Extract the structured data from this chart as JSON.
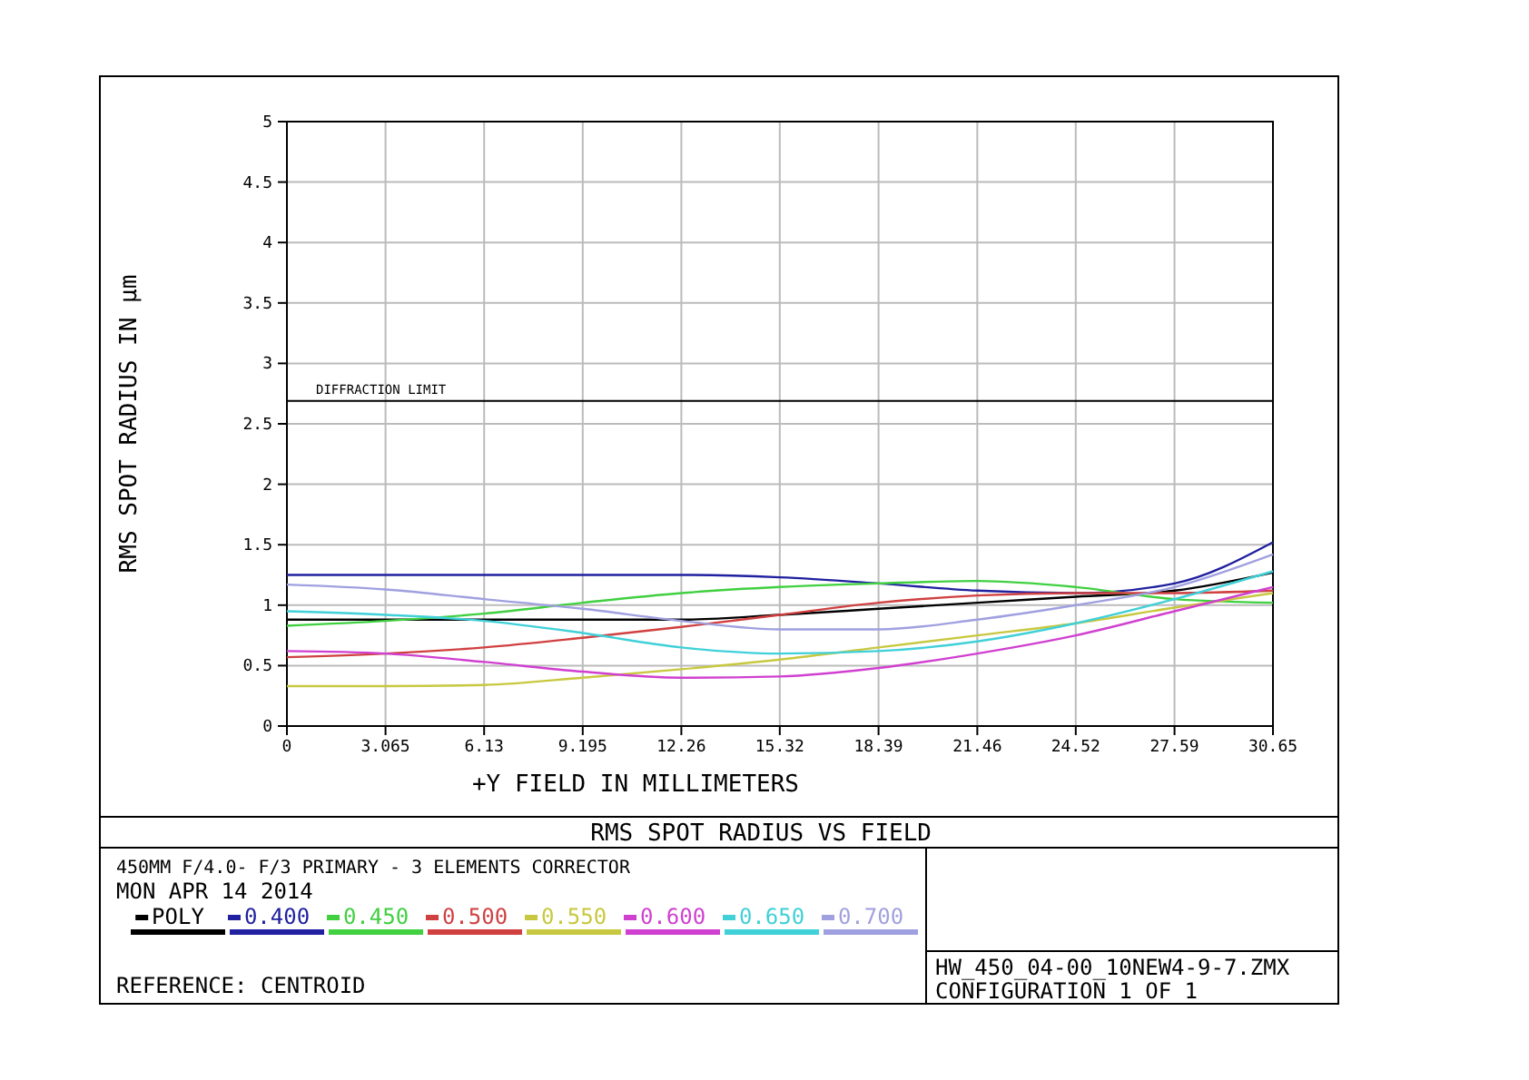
{
  "chart_data": {
    "type": "line",
    "title": "RMS SPOT RADIUS VS FIELD",
    "subtitle": "450MM F/4.0- F/3 PRIMARY -  3 ELEMENTS CORRECTOR",
    "xlabel": "+Y FIELD IN MILLIMETERS",
    "ylabel": "RMS SPOT RADIUS IN µm",
    "x": [
      0,
      3.065,
      6.13,
      9.195,
      12.26,
      15.32,
      18.39,
      21.46,
      24.52,
      27.59,
      30.65
    ],
    "series": [
      {
        "name": "POLY",
        "color": "#000000",
        "values": [
          0.88,
          0.88,
          0.88,
          0.88,
          0.88,
          0.92,
          0.97,
          1.02,
          1.07,
          1.12,
          1.27
        ]
      },
      {
        "name": "0.400",
        "color": "#2020a0",
        "values": [
          1.25,
          1.25,
          1.25,
          1.25,
          1.25,
          1.23,
          1.18,
          1.12,
          1.1,
          1.18,
          1.52
        ]
      },
      {
        "name": "0.450",
        "color": "#40d040",
        "values": [
          0.83,
          0.87,
          0.93,
          1.02,
          1.1,
          1.15,
          1.18,
          1.2,
          1.15,
          1.05,
          1.02
        ]
      },
      {
        "name": "0.500",
        "color": "#d04040",
        "values": [
          0.57,
          0.6,
          0.65,
          0.73,
          0.82,
          0.92,
          1.02,
          1.08,
          1.1,
          1.1,
          1.12
        ]
      },
      {
        "name": "0.550",
        "color": "#c8c840",
        "values": [
          0.33,
          0.33,
          0.34,
          0.4,
          0.47,
          0.55,
          0.65,
          0.75,
          0.85,
          0.98,
          1.1
        ]
      },
      {
        "name": "0.600",
        "color": "#d040d0",
        "values": [
          0.62,
          0.6,
          0.53,
          0.45,
          0.4,
          0.41,
          0.48,
          0.6,
          0.75,
          0.95,
          1.15
        ]
      },
      {
        "name": "0.650",
        "color": "#40d0d8",
        "values": [
          0.95,
          0.92,
          0.87,
          0.77,
          0.65,
          0.6,
          0.62,
          0.7,
          0.85,
          1.05,
          1.28
        ]
      },
      {
        "name": "0.700",
        "color": "#a0a0e0",
        "values": [
          1.17,
          1.13,
          1.05,
          0.97,
          0.87,
          0.8,
          0.8,
          0.88,
          1.0,
          1.15,
          1.42
        ]
      }
    ],
    "xlim": [
      0,
      30.65
    ],
    "xticks": [
      0,
      3.065,
      6.13,
      9.195,
      12.26,
      15.32,
      18.39,
      21.46,
      24.52,
      27.59,
      30.65
    ],
    "ylim": [
      0,
      5
    ],
    "yticks": [
      0,
      0.5,
      1,
      1.5,
      2,
      2.5,
      3,
      3.5,
      4,
      4.5,
      5
    ],
    "grid": true,
    "legend": "bottom",
    "marker": "none",
    "line_style": "solid",
    "ref_lines": [
      {
        "axis": "y",
        "value": 2.69,
        "label": "DIFFRACTION LIMIT",
        "color": "#000000"
      }
    ],
    "annotations": [
      "MON APR 14 2014",
      "REFERENCE: CENTROID",
      "HW_450_04-00_10NEW4-9-7.ZMX",
      "CONFIGURATION 1 OF 1"
    ]
  }
}
